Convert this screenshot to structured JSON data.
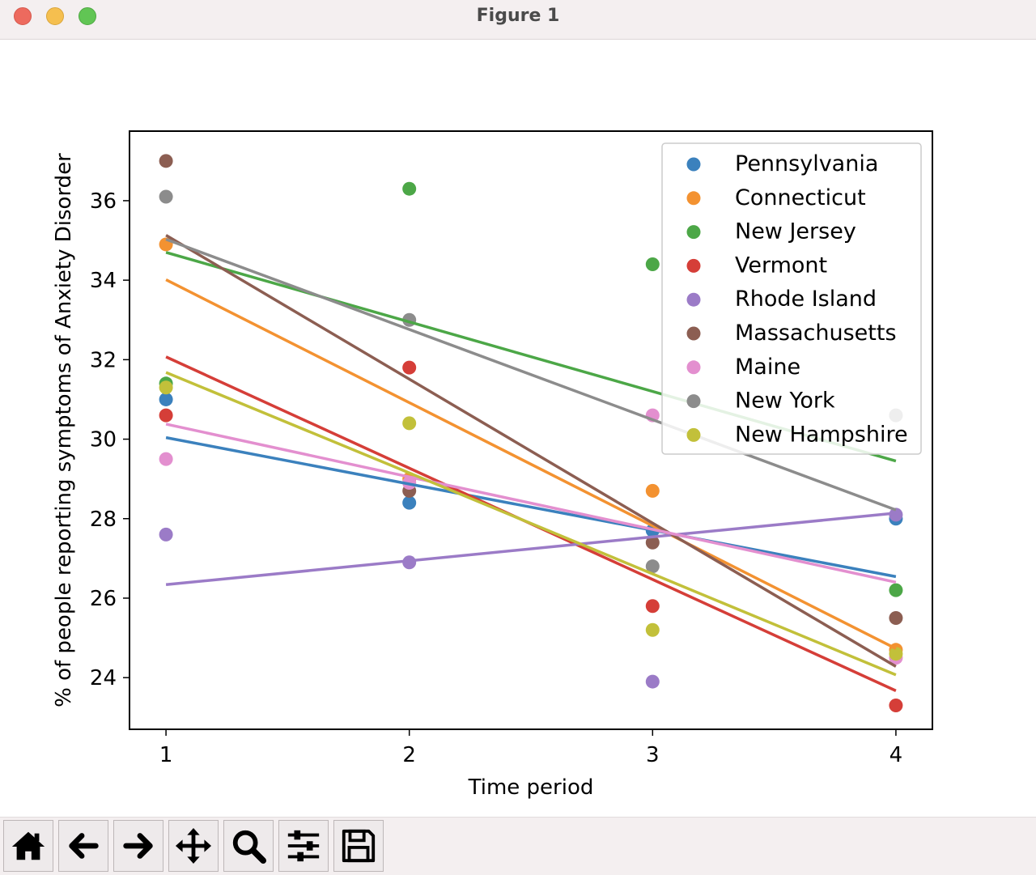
{
  "window": {
    "title": "Figure 1"
  },
  "toolbar": {
    "buttons": [
      {
        "name": "home-icon",
        "label": "Home"
      },
      {
        "name": "back-arrow-icon",
        "label": "Back"
      },
      {
        "name": "forward-arrow-icon",
        "label": "Forward"
      },
      {
        "name": "pan-icon",
        "label": "Pan"
      },
      {
        "name": "zoom-icon",
        "label": "Zoom"
      },
      {
        "name": "configure-subplots-icon",
        "label": "Configure subplots"
      },
      {
        "name": "save-icon",
        "label": "Save"
      }
    ]
  },
  "chart_data": {
    "type": "scatter",
    "title": "",
    "xlabel": "Time period",
    "ylabel": "% of people reporting symptoms of Anxiety Disorder",
    "xlim": [
      0.85,
      4.15
    ],
    "ylim": [
      22.7,
      37.75
    ],
    "xticks": [
      1,
      2,
      3,
      4
    ],
    "yticks": [
      24,
      26,
      28,
      30,
      32,
      34,
      36
    ],
    "grid": false,
    "legend_position": "top-right",
    "x": [
      1,
      2,
      3,
      4
    ],
    "series": [
      {
        "name": "Pennsylvania",
        "color": "#3b81bd",
        "values": [
          31.0,
          28.4,
          27.7,
          28.0
        ],
        "fit": [
          30.04,
          28.87,
          27.71,
          26.54
        ]
      },
      {
        "name": "Connecticut",
        "color": "#f39231",
        "values": [
          34.9,
          29.0,
          28.7,
          24.7
        ],
        "fit": [
          34.01,
          30.92,
          27.82,
          24.73
        ]
      },
      {
        "name": "New Jersey",
        "color": "#4ca747",
        "values": [
          31.4,
          36.3,
          34.4,
          26.2
        ],
        "fit": [
          34.7,
          32.95,
          31.2,
          29.45
        ]
      },
      {
        "name": "Vermont",
        "color": "#d53e38",
        "values": [
          30.6,
          31.8,
          25.8,
          23.3
        ],
        "fit": [
          32.07,
          29.27,
          26.47,
          23.67
        ]
      },
      {
        "name": "Rhode Island",
        "color": "#9b7bc7",
        "values": [
          27.6,
          26.9,
          23.9,
          28.1
        ],
        "fit": [
          26.34,
          26.94,
          27.54,
          28.14
        ]
      },
      {
        "name": "Massachusetts",
        "color": "#8c5e52",
        "values": [
          37.0,
          28.7,
          27.4,
          25.5
        ],
        "fit": [
          35.13,
          31.51,
          27.89,
          24.28
        ]
      },
      {
        "name": "Maine",
        "color": "#e38fcf",
        "values": [
          29.5,
          28.9,
          30.6,
          24.5
        ],
        "fit": [
          30.38,
          29.05,
          27.73,
          26.4
        ]
      },
      {
        "name": "New York",
        "color": "#8c8c8c",
        "values": [
          36.1,
          33.0,
          26.8,
          30.6
        ],
        "fit": [
          35.03,
          32.76,
          30.49,
          28.22
        ]
      },
      {
        "name": "New Hampshire",
        "color": "#c2c03a",
        "values": [
          31.3,
          30.4,
          25.2,
          24.6
        ],
        "fit": [
          31.68,
          29.15,
          26.61,
          24.07
        ]
      }
    ]
  }
}
